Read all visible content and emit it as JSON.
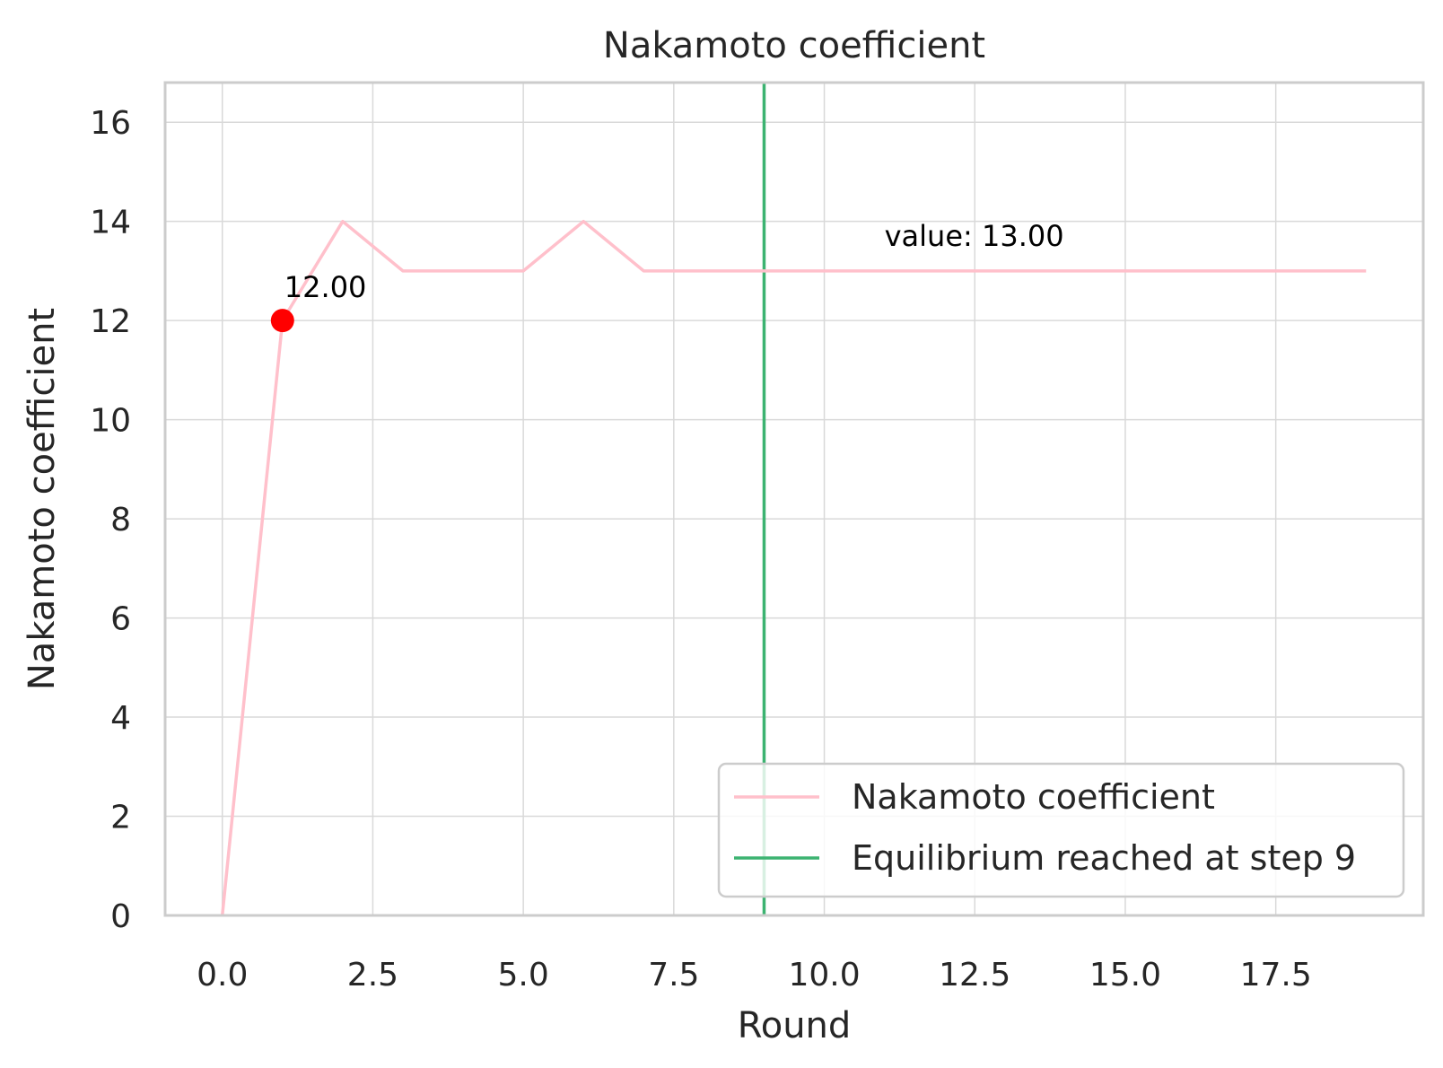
{
  "chart_data": {
    "type": "line",
    "title": "Nakamoto coefficient",
    "xlabel": "Round",
    "ylabel": "Nakamoto coefficient",
    "xlim": [
      -0.95,
      19.95
    ],
    "ylim": [
      0,
      16.8
    ],
    "xticks": [
      0.0,
      2.5,
      5.0,
      7.5,
      10.0,
      12.5,
      15.0,
      17.5
    ],
    "xtick_labels": [
      "0.0",
      "2.5",
      "5.0",
      "7.5",
      "10.0",
      "12.5",
      "15.0",
      "17.5"
    ],
    "yticks": [
      0,
      2,
      4,
      6,
      8,
      10,
      12,
      14,
      16
    ],
    "ytick_labels": [
      "0",
      "2",
      "4",
      "6",
      "8",
      "10",
      "12",
      "14",
      "16"
    ],
    "grid": true,
    "legend_position": "lower-right",
    "series": [
      {
        "name": "Nakamoto coefficient",
        "color": "#FFC0CB",
        "x": [
          0,
          1,
          2,
          3,
          4,
          5,
          6,
          7,
          8,
          9,
          10,
          11,
          12,
          13,
          14,
          15,
          16,
          17,
          18,
          19
        ],
        "y": [
          0,
          12,
          14,
          13,
          13,
          13,
          14,
          13,
          13,
          13,
          13,
          13,
          13,
          13,
          13,
          13,
          13,
          13,
          13,
          13
        ]
      }
    ],
    "vlines": [
      {
        "name": "Equilibrium reached at step 9",
        "x": 9,
        "color": "#3CB371"
      }
    ],
    "points": [
      {
        "x": 1,
        "y": 12,
        "color": "#FF0000"
      }
    ],
    "annotations": [
      {
        "text": "12.00",
        "x": 1,
        "y": 12
      },
      {
        "text": "value: 13.00",
        "x": 11,
        "y": 13
      }
    ]
  }
}
